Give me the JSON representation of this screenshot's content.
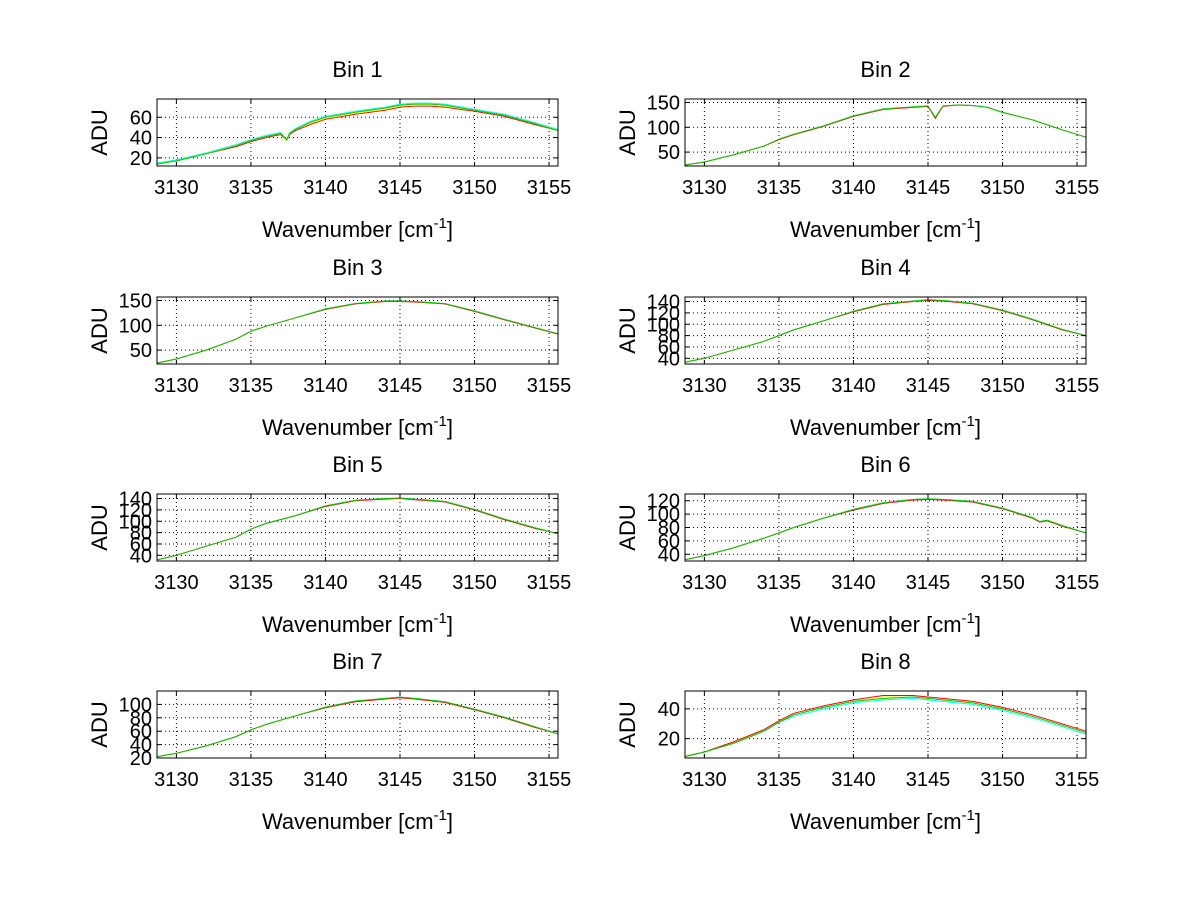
{
  "chart_data": [
    {
      "type": "line",
      "title": "Bin 1",
      "xlabel": "Wavenumber [cm",
      "xlabel_sup": "-1",
      "xlabel_end": "]",
      "ylabel": "ADU",
      "xlim": [
        3128.7,
        3155.6
      ],
      "ylim": [
        12,
        78
      ],
      "xticks": [
        3130,
        3135,
        3140,
        3145,
        3150,
        3155
      ],
      "yticks": [
        20,
        40,
        60
      ],
      "x": [
        3128.7,
        3130,
        3132,
        3134,
        3135,
        3136,
        3137,
        3137.4,
        3137.6,
        3138,
        3139,
        3140,
        3142,
        3144,
        3145,
        3146,
        3147,
        3148,
        3150,
        3152,
        3154,
        3155.6
      ],
      "series": [
        {
          "color": "#ff0000",
          "values": [
            14,
            17,
            24,
            31,
            36,
            40,
            43,
            37,
            43,
            47,
            53,
            58,
            63,
            67,
            70,
            71,
            71,
            70,
            66,
            61,
            53,
            47
          ]
        },
        {
          "color": "#00ffff",
          "values": [
            15,
            18,
            25,
            33,
            38,
            42,
            45,
            38,
            45,
            49,
            56,
            61,
            66,
            70,
            73,
            74,
            74,
            73,
            68,
            63,
            55,
            48
          ]
        },
        {
          "color": "#ffff00",
          "values": [
            14,
            17,
            24,
            32,
            37,
            41,
            44,
            37,
            44,
            48,
            54,
            59,
            64,
            68,
            71,
            72,
            72,
            71,
            67,
            62,
            54,
            47
          ]
        },
        {
          "color": "#00cc00",
          "values": [
            14,
            17,
            24,
            32,
            37,
            41,
            44,
            38,
            44,
            48,
            55,
            60,
            65,
            69,
            72,
            73,
            73,
            72,
            67,
            62,
            54,
            47
          ]
        }
      ]
    },
    {
      "type": "line",
      "title": "Bin 2",
      "xlabel": "Wavenumber [cm",
      "xlabel_sup": "-1",
      "xlabel_end": "]",
      "ylabel": "ADU",
      "xlim": [
        3128.7,
        3155.6
      ],
      "ylim": [
        22,
        157
      ],
      "xticks": [
        3130,
        3135,
        3140,
        3145,
        3150,
        3155
      ],
      "yticks": [
        50,
        100,
        150
      ],
      "x": [
        3128.7,
        3130,
        3132,
        3134,
        3135,
        3136,
        3138,
        3140,
        3142,
        3144,
        3145,
        3145.5,
        3146,
        3147,
        3148,
        3149,
        3150,
        3152,
        3154,
        3155.6
      ],
      "series": [
        {
          "color": "#ff0000",
          "values": [
            24,
            30,
            45,
            62,
            75,
            85,
            102,
            122,
            136,
            140,
            142,
            118,
            142,
            145,
            144,
            140,
            130,
            115,
            95,
            80
          ]
        },
        {
          "color": "#00cc00",
          "values": [
            24,
            30,
            45,
            62,
            76,
            86,
            103,
            123,
            137,
            141,
            143,
            120,
            143,
            145,
            144,
            140,
            130,
            115,
            95,
            80
          ]
        }
      ]
    },
    {
      "type": "line",
      "title": "Bin 3",
      "xlabel": "Wavenumber [cm",
      "xlabel_sup": "-1",
      "xlabel_end": "]",
      "ylabel": "ADU",
      "xlim": [
        3128.7,
        3155.6
      ],
      "ylim": [
        22,
        157
      ],
      "xticks": [
        3130,
        3135,
        3140,
        3145,
        3150,
        3155
      ],
      "yticks": [
        50,
        100,
        150
      ],
      "x": [
        3128.7,
        3130,
        3132,
        3134,
        3135,
        3136,
        3138,
        3140,
        3142,
        3144,
        3145,
        3146,
        3148,
        3150,
        3152,
        3154,
        3155.6
      ],
      "series": [
        {
          "color": "#ff0000",
          "values": [
            24,
            32,
            50,
            72,
            88,
            98,
            115,
            132,
            143,
            148,
            148,
            147,
            143,
            128,
            111,
            95,
            82
          ]
        },
        {
          "color": "#00cc00",
          "values": [
            24,
            32,
            50,
            72,
            88,
            98,
            115,
            133,
            144,
            149,
            149,
            148,
            144,
            129,
            112,
            96,
            83
          ]
        }
      ]
    },
    {
      "type": "line",
      "title": "Bin 4",
      "xlabel": "Wavenumber [cm",
      "xlabel_sup": "-1",
      "xlabel_end": "]",
      "ylabel": "ADU",
      "xlim": [
        3128.7,
        3155.6
      ],
      "ylim": [
        30,
        148
      ],
      "xticks": [
        3130,
        3135,
        3140,
        3145,
        3150,
        3155
      ],
      "yticks": [
        40,
        60,
        80,
        100,
        120,
        140
      ],
      "x": [
        3128.7,
        3130,
        3132,
        3134,
        3135,
        3136,
        3138,
        3140,
        3142,
        3144,
        3145,
        3146,
        3148,
        3150,
        3152,
        3154,
        3155.6
      ],
      "series": [
        {
          "color": "#ff0000",
          "values": [
            33,
            40,
            55,
            70,
            80,
            90,
            106,
            122,
            135,
            140,
            142,
            141,
            136,
            124,
            108,
            90,
            80
          ]
        },
        {
          "color": "#00cc00",
          "values": [
            33,
            40,
            55,
            70,
            80,
            90,
            106,
            123,
            136,
            141,
            143,
            142,
            137,
            125,
            109,
            91,
            80
          ]
        }
      ]
    },
    {
      "type": "line",
      "title": "Bin 5",
      "xlabel": "Wavenumber [cm",
      "xlabel_sup": "-1",
      "xlabel_end": "]",
      "ylabel": "ADU",
      "xlim": [
        3128.7,
        3155.6
      ],
      "ylim": [
        30,
        148
      ],
      "xticks": [
        3130,
        3135,
        3140,
        3145,
        3150,
        3155
      ],
      "yticks": [
        40,
        60,
        80,
        100,
        120,
        140
      ],
      "x": [
        3128.7,
        3130,
        3132,
        3134,
        3135,
        3136,
        3138,
        3140,
        3142,
        3144,
        3145,
        3146,
        3148,
        3150,
        3152,
        3154,
        3155.6
      ],
      "series": [
        {
          "color": "#ff0000",
          "values": [
            32,
            40,
            56,
            72,
            86,
            96,
            110,
            126,
            136,
            139,
            140,
            138,
            134,
            120,
            103,
            88,
            78
          ]
        },
        {
          "color": "#00cc00",
          "values": [
            32,
            40,
            56,
            72,
            86,
            96,
            110,
            127,
            137,
            140,
            141,
            139,
            135,
            121,
            104,
            89,
            78
          ]
        }
      ]
    },
    {
      "type": "line",
      "title": "Bin 6",
      "xlabel": "Wavenumber [cm",
      "xlabel_sup": "-1",
      "xlabel_end": "]",
      "ylabel": "ADU",
      "xlim": [
        3128.7,
        3155.6
      ],
      "ylim": [
        30,
        130
      ],
      "xticks": [
        3130,
        3135,
        3140,
        3145,
        3150,
        3155
      ],
      "yticks": [
        40,
        60,
        80,
        100,
        120
      ],
      "x": [
        3128.7,
        3130,
        3132,
        3134,
        3135,
        3136,
        3138,
        3140,
        3142,
        3144,
        3145,
        3146,
        3148,
        3150,
        3152,
        3152.5,
        3153,
        3154,
        3155.6
      ],
      "series": [
        {
          "color": "#ff0000",
          "values": [
            32,
            38,
            50,
            64,
            72,
            80,
            94,
            106,
            116,
            121,
            122,
            121,
            118,
            108,
            94,
            88,
            90,
            82,
            72
          ]
        },
        {
          "color": "#00cc00",
          "values": [
            32,
            38,
            50,
            64,
            72,
            80,
            94,
            107,
            117,
            122,
            123,
            122,
            119,
            109,
            95,
            89,
            91,
            83,
            72
          ]
        }
      ]
    },
    {
      "type": "line",
      "title": "Bin 7",
      "xlabel": "Wavenumber [cm",
      "xlabel_sup": "-1",
      "xlabel_end": "]",
      "ylabel": "ADU",
      "xlim": [
        3128.7,
        3155.6
      ],
      "ylim": [
        20,
        120
      ],
      "xticks": [
        3130,
        3135,
        3140,
        3145,
        3150,
        3155
      ],
      "yticks": [
        20,
        40,
        60,
        80,
        100
      ],
      "x": [
        3128.7,
        3130,
        3132,
        3134,
        3135,
        3136,
        3138,
        3140,
        3142,
        3144,
        3145,
        3146,
        3148,
        3150,
        3152,
        3154,
        3155.6
      ],
      "series": [
        {
          "color": "#ff0000",
          "values": [
            22,
            27,
            38,
            52,
            62,
            70,
            83,
            95,
            104,
            108,
            110,
            108,
            103,
            92,
            80,
            66,
            56
          ]
        },
        {
          "color": "#00cc00",
          "values": [
            22,
            27,
            38,
            52,
            62,
            70,
            83,
            96,
            105,
            109,
            111,
            109,
            104,
            93,
            81,
            67,
            56
          ]
        }
      ]
    },
    {
      "type": "line",
      "title": "Bin 8",
      "xlabel": "Wavenumber [cm",
      "xlabel_sup": "-1",
      "xlabel_end": "]",
      "ylabel": "ADU",
      "xlim": [
        3128.7,
        3155.6
      ],
      "ylim": [
        7,
        52
      ],
      "xticks": [
        3130,
        3135,
        3140,
        3145,
        3150,
        3155
      ],
      "yticks": [
        20,
        40
      ],
      "x": [
        3128.7,
        3130,
        3132,
        3134,
        3135,
        3136,
        3138,
        3140,
        3142,
        3144,
        3145,
        3146,
        3148,
        3150,
        3152,
        3154,
        3155.6
      ],
      "series": [
        {
          "color": "#00ffff",
          "values": [
            8,
            11,
            17,
            25,
            31,
            35,
            40,
            44,
            46,
            47,
            46,
            45,
            43,
            39,
            34,
            28,
            23
          ]
        },
        {
          "color": "#ffff00",
          "values": [
            8,
            11,
            17,
            26,
            32,
            36,
            41,
            45,
            48,
            48,
            47,
            46,
            44,
            40,
            35,
            29,
            24
          ]
        },
        {
          "color": "#ff0000",
          "values": [
            8,
            11,
            18,
            26,
            32,
            37,
            42,
            46,
            49,
            49,
            48,
            47,
            45,
            41,
            36,
            30,
            25
          ]
        },
        {
          "color": "#00cc00",
          "values": [
            8,
            11,
            17,
            25,
            31,
            36,
            41,
            45,
            47,
            48,
            47,
            46,
            44,
            40,
            35,
            29,
            24
          ]
        }
      ]
    }
  ]
}
